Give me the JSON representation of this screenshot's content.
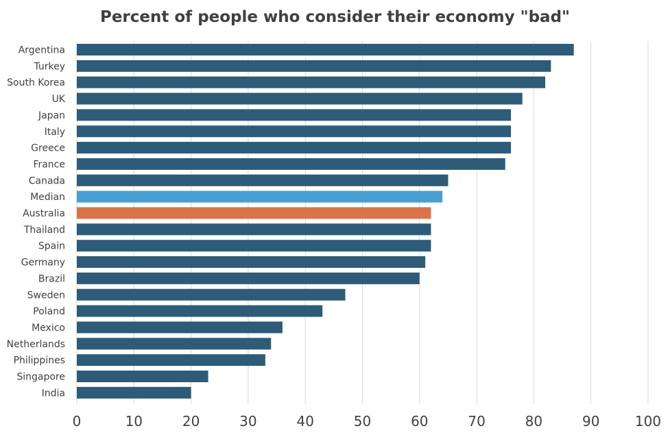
{
  "chart_data": {
    "type": "bar",
    "orientation": "horizontal",
    "title": "Percent of people who consider their economy \"bad\"",
    "xlabel": "",
    "ylabel": "",
    "xlim": [
      0,
      100
    ],
    "ticks": [
      0,
      10,
      20,
      30,
      40,
      50,
      60,
      70,
      80,
      90,
      100
    ],
    "grid": true,
    "legend": "none",
    "categories": [
      "Argentina",
      "Turkey",
      "South Korea",
      "UK",
      "Japan",
      "Italy",
      "Greece",
      "France",
      "Canada",
      "Median",
      "Australia",
      "Thailand",
      "Spain",
      "Germany",
      "Brazil",
      "Sweden",
      "Poland",
      "Mexico",
      "Netherlands",
      "Philippines",
      "Singapore",
      "India"
    ],
    "values": [
      87,
      83,
      82,
      78,
      76,
      76,
      76,
      75,
      65,
      64,
      62,
      62,
      62,
      61,
      60,
      47,
      43,
      36,
      34,
      33,
      23,
      20
    ],
    "colors": {
      "default": "#2e5b78",
      "highlights": {
        "Median": "#4a9fd2",
        "Australia": "#d9744a"
      }
    }
  }
}
